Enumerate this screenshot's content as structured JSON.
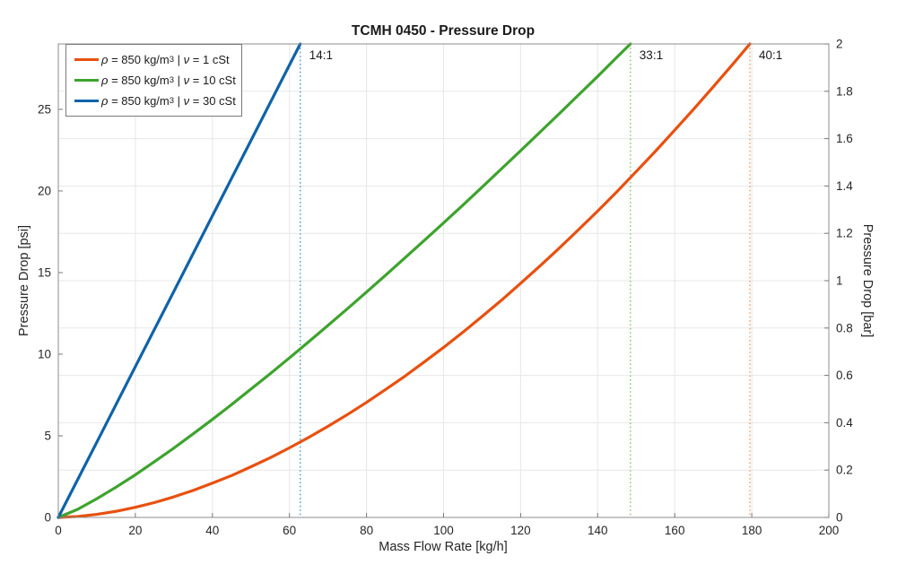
{
  "chart_data": {
    "type": "line",
    "title": "TCMH 0450 - Pressure Drop",
    "xlabel": "Mass Flow Rate [kg/h]",
    "ylabel_left": "Pressure Drop [psi]",
    "ylabel_right": "Pressure Drop [bar]",
    "xlim": [
      0,
      200
    ],
    "ylim_left_psi": [
      0,
      29.0075
    ],
    "ylim_right_bar": [
      0,
      2
    ],
    "x_ticks": [
      0,
      20,
      40,
      60,
      80,
      100,
      120,
      140,
      160,
      180,
      200
    ],
    "y_ticks_left_psi": [
      0,
      5,
      10,
      15,
      20,
      25
    ],
    "y_ticks_right_bar": [
      "0",
      "0.2",
      "0.4",
      "0.6",
      "0.8",
      "1",
      "1.2",
      "1.4",
      "1.6",
      "1.8",
      "2"
    ],
    "grid": true,
    "legend_position": "top-left",
    "series": [
      {
        "name": "ρ = 850 kg/m³ | ν = 1 cSt",
        "color": "#E8500F",
        "x": [
          0,
          5,
          10,
          15,
          20,
          25,
          30,
          35,
          40,
          45,
          50,
          55,
          60,
          65,
          70,
          75,
          80,
          85,
          90,
          95,
          100,
          105,
          110,
          115,
          120,
          125,
          130,
          135,
          140,
          145,
          150,
          155,
          160,
          165,
          170,
          175,
          179.5
        ],
        "y_bar": [
          0,
          0.004,
          0.013,
          0.026,
          0.043,
          0.063,
          0.087,
          0.114,
          0.145,
          0.177,
          0.214,
          0.252,
          0.294,
          0.338,
          0.385,
          0.434,
          0.486,
          0.541,
          0.597,
          0.657,
          0.718,
          0.782,
          0.849,
          0.917,
          0.989,
          1.062,
          1.137,
          1.215,
          1.294,
          1.376,
          1.461,
          1.547,
          1.636,
          1.726,
          1.819,
          1.913,
          2.0
        ]
      },
      {
        "name": "ρ = 850 kg/m³ | ν = 10 cSt",
        "color": "#3EA32E",
        "x": [
          0,
          5,
          10,
          15,
          20,
          25,
          30,
          35,
          40,
          45,
          50,
          55,
          60,
          65,
          70,
          75,
          80,
          85,
          90,
          95,
          100,
          105,
          110,
          115,
          120,
          125,
          130,
          135,
          140,
          145,
          148.5
        ],
        "y_bar": [
          0,
          0.034,
          0.079,
          0.128,
          0.18,
          0.236,
          0.293,
          0.353,
          0.414,
          0.477,
          0.542,
          0.607,
          0.674,
          0.742,
          0.811,
          0.881,
          0.952,
          1.024,
          1.097,
          1.17,
          1.244,
          1.319,
          1.395,
          1.472,
          1.549,
          1.627,
          1.705,
          1.784,
          1.863,
          1.944,
          2.0
        ]
      },
      {
        "name": "ρ = 850 kg/m³ | ν = 30 cSt",
        "color": "#0F63A8",
        "x": [
          0,
          10,
          20,
          30,
          40,
          50,
          60,
          62.8
        ],
        "y_bar": [
          0,
          0.318,
          0.637,
          0.955,
          1.274,
          1.592,
          1.911,
          2.0
        ]
      }
    ],
    "turndown_lines": [
      {
        "label": "14:1",
        "x_kg_h": 62.8,
        "color": "#4E97D1"
      },
      {
        "label": "33:1",
        "x_kg_h": 148.5,
        "color": "#7FC96B"
      },
      {
        "label": "40:1",
        "x_kg_h": 179.5,
        "color": "#F2A05F"
      }
    ]
  },
  "legend": {
    "items": [
      {
        "rho": "ρ",
        "density_eq": " = 850 kg/m",
        "exponent": "3",
        "separator": " | ",
        "nu": "ν",
        "viscosity_eq": " = 1 cSt"
      },
      {
        "rho": "ρ",
        "density_eq": " = 850 kg/m",
        "exponent": "3",
        "separator": " | ",
        "nu": "ν",
        "viscosity_eq": " = 10 cSt"
      },
      {
        "rho": "ρ",
        "density_eq": " = 850 kg/m",
        "exponent": "3",
        "separator": " | ",
        "nu": "ν",
        "viscosity_eq": " = 30 cSt"
      }
    ]
  },
  "style_colors": {
    "grid": "#E7E7E7",
    "axis_box": "#8C8C8C",
    "tick": "#7a7a7a",
    "tick_label": "#262626"
  }
}
